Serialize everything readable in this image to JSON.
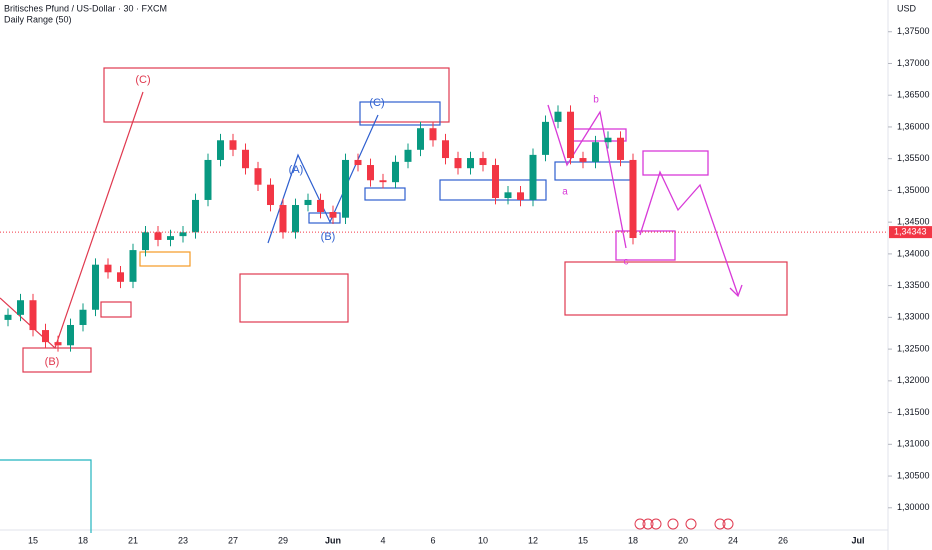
{
  "chart_data": {
    "type": "candlestick",
    "title": "Britisches Pfund / US-Dollar · 30 · FXCM",
    "subtitle": "Daily Range (50)",
    "y_axis_label": "USD",
    "categories": [
      null,
      null,
      "15",
      null,
      null,
      null,
      "18",
      null,
      null,
      null,
      "21",
      null,
      null,
      null,
      "23",
      null,
      null,
      null,
      "27",
      null,
      null,
      null,
      "29",
      null,
      null,
      null,
      "Jun",
      null,
      null,
      null,
      "4",
      null,
      null,
      null,
      "6",
      null,
      null,
      null,
      "10",
      null,
      null,
      null,
      "12",
      null,
      null,
      null,
      "15",
      null,
      null,
      null,
      "18",
      null,
      null,
      null,
      "20",
      null,
      null,
      null,
      "24",
      null,
      null,
      null,
      "26",
      null,
      null,
      null,
      null,
      null,
      "Jul",
      null,
      null
    ],
    "up_color": "#089981",
    "down_color": "#f23645",
    "candles": [
      {
        "o": 1.3296,
        "h": 1.3314,
        "l": 1.3286,
        "c": 1.3304
      },
      {
        "o": 1.3304,
        "h": 1.3337,
        "l": 1.3294,
        "c": 1.3327
      },
      {
        "o": 1.3327,
        "h": 1.3337,
        "l": 1.327,
        "c": 1.328
      },
      {
        "o": 1.328,
        "h": 1.329,
        "l": 1.3251,
        "c": 1.3261
      },
      {
        "o": 1.3261,
        "h": 1.3271,
        "l": 1.3246,
        "c": 1.3256
      },
      {
        "o": 1.3256,
        "h": 1.3298,
        "l": 1.3246,
        "c": 1.3288
      },
      {
        "o": 1.3288,
        "h": 1.3322,
        "l": 1.3278,
        "c": 1.3312
      },
      {
        "o": 1.3312,
        "h": 1.3393,
        "l": 1.3302,
        "c": 1.3383
      },
      {
        "o": 1.3383,
        "h": 1.3393,
        "l": 1.3361,
        "c": 1.3371
      },
      {
        "o": 1.3371,
        "h": 1.3381,
        "l": 1.3346,
        "c": 1.3356
      },
      {
        "o": 1.3356,
        "h": 1.3416,
        "l": 1.3346,
        "c": 1.3406
      },
      {
        "o": 1.3406,
        "h": 1.3444,
        "l": 1.3396,
        "c": 1.3434
      },
      {
        "o": 1.3434,
        "h": 1.3444,
        "l": 1.3412,
        "c": 1.3422
      },
      {
        "o": 1.3422,
        "h": 1.3438,
        "l": 1.3412,
        "c": 1.3428
      },
      {
        "o": 1.3428,
        "h": 1.3444,
        "l": 1.3418,
        "c": 1.3434
      },
      {
        "o": 1.3434,
        "h": 1.3495,
        "l": 1.3424,
        "c": 1.3485
      },
      {
        "o": 1.3485,
        "h": 1.3558,
        "l": 1.3475,
        "c": 1.3548
      },
      {
        "o": 1.3548,
        "h": 1.3589,
        "l": 1.3538,
        "c": 1.3579
      },
      {
        "o": 1.3579,
        "h": 1.3589,
        "l": 1.3554,
        "c": 1.3564
      },
      {
        "o": 1.3564,
        "h": 1.3574,
        "l": 1.3525,
        "c": 1.3535
      },
      {
        "o": 1.3535,
        "h": 1.3545,
        "l": 1.3499,
        "c": 1.3509
      },
      {
        "o": 1.3509,
        "h": 1.3519,
        "l": 1.3467,
        "c": 1.3477
      },
      {
        "o": 1.3477,
        "h": 1.3487,
        "l": 1.3424,
        "c": 1.3434
      },
      {
        "o": 1.3434,
        "h": 1.3487,
        "l": 1.3424,
        "c": 1.3477
      },
      {
        "o": 1.3477,
        "h": 1.3495,
        "l": 1.3467,
        "c": 1.3485
      },
      {
        "o": 1.3485,
        "h": 1.3495,
        "l": 1.3456,
        "c": 1.3466
      },
      {
        "o": 1.3466,
        "h": 1.3476,
        "l": 1.3447,
        "c": 1.3457
      },
      {
        "o": 1.3457,
        "h": 1.3558,
        "l": 1.3447,
        "c": 1.3548
      },
      {
        "o": 1.3548,
        "h": 1.3558,
        "l": 1.353,
        "c": 1.354
      },
      {
        "o": 1.354,
        "h": 1.355,
        "l": 1.3506,
        "c": 1.3516
      },
      {
        "o": 1.3516,
        "h": 1.3526,
        "l": 1.3503,
        "c": 1.3513
      },
      {
        "o": 1.3513,
        "h": 1.3555,
        "l": 1.3503,
        "c": 1.3545
      },
      {
        "o": 1.3545,
        "h": 1.3574,
        "l": 1.3535,
        "c": 1.3564
      },
      {
        "o": 1.3564,
        "h": 1.3608,
        "l": 1.3554,
        "c": 1.3598
      },
      {
        "o": 1.3598,
        "h": 1.3608,
        "l": 1.3569,
        "c": 1.3579
      },
      {
        "o": 1.3579,
        "h": 1.3589,
        "l": 1.3541,
        "c": 1.3551
      },
      {
        "o": 1.3551,
        "h": 1.3561,
        "l": 1.3525,
        "c": 1.3535
      },
      {
        "o": 1.3535,
        "h": 1.3561,
        "l": 1.3525,
        "c": 1.3551
      },
      {
        "o": 1.3551,
        "h": 1.3561,
        "l": 1.353,
        "c": 1.354
      },
      {
        "o": 1.354,
        "h": 1.355,
        "l": 1.3478,
        "c": 1.3488
      },
      {
        "o": 1.3488,
        "h": 1.3507,
        "l": 1.3478,
        "c": 1.3497
      },
      {
        "o": 1.3497,
        "h": 1.3507,
        "l": 1.3475,
        "c": 1.3485
      },
      {
        "o": 1.3485,
        "h": 1.3566,
        "l": 1.3475,
        "c": 1.3556
      },
      {
        "o": 1.3556,
        "h": 1.3618,
        "l": 1.3546,
        "c": 1.3608
      },
      {
        "o": 1.3608,
        "h": 1.3634,
        "l": 1.3598,
        "c": 1.3624
      },
      {
        "o": 1.3624,
        "h": 1.3634,
        "l": 1.3541,
        "c": 1.3551
      },
      {
        "o": 1.3551,
        "h": 1.3561,
        "l": 1.3535,
        "c": 1.3545
      },
      {
        "o": 1.3545,
        "h": 1.3586,
        "l": 1.3535,
        "c": 1.3576
      },
      {
        "o": 1.3576,
        "h": 1.3593,
        "l": 1.3566,
        "c": 1.3583
      },
      {
        "o": 1.3583,
        "h": 1.3593,
        "l": 1.3538,
        "c": 1.3548
      },
      {
        "o": 1.3548,
        "h": 1.3558,
        "l": 1.3415,
        "c": 1.3425
      }
    ],
    "ylim": [
      1.2965,
      1.38
    ],
    "yticks": [
      {
        "value": 1.375,
        "label": "1,37500"
      },
      {
        "value": 1.37,
        "label": "1,37000"
      },
      {
        "value": 1.365,
        "label": "1,36500"
      },
      {
        "value": 1.36,
        "label": "1,36000"
      },
      {
        "value": 1.355,
        "label": "1,35500"
      },
      {
        "value": 1.35,
        "label": "1,35000"
      },
      {
        "value": 1.345,
        "label": "1,34500"
      },
      {
        "value": 1.34,
        "label": "1,34000"
      },
      {
        "value": 1.335,
        "label": "1,33500"
      },
      {
        "value": 1.33,
        "label": "1,33000"
      },
      {
        "value": 1.325,
        "label": "1,32500"
      },
      {
        "value": 1.32,
        "label": "1,32000"
      },
      {
        "value": 1.315,
        "label": "1,31500"
      },
      {
        "value": 1.31,
        "label": "1,31000"
      },
      {
        "value": 1.305,
        "label": "1,30500"
      },
      {
        "value": 1.3,
        "label": "1,30000"
      }
    ],
    "current_price": {
      "value": 1.34343,
      "label": "1,34343"
    },
    "annotations": {
      "red_c": "(C)",
      "red_b": "(B)",
      "blue_a": "(A)",
      "blue_b": "(B)",
      "blue_c": "(C)",
      "wave_a": "a",
      "wave_b": "b",
      "wave_c": "c"
    }
  }
}
